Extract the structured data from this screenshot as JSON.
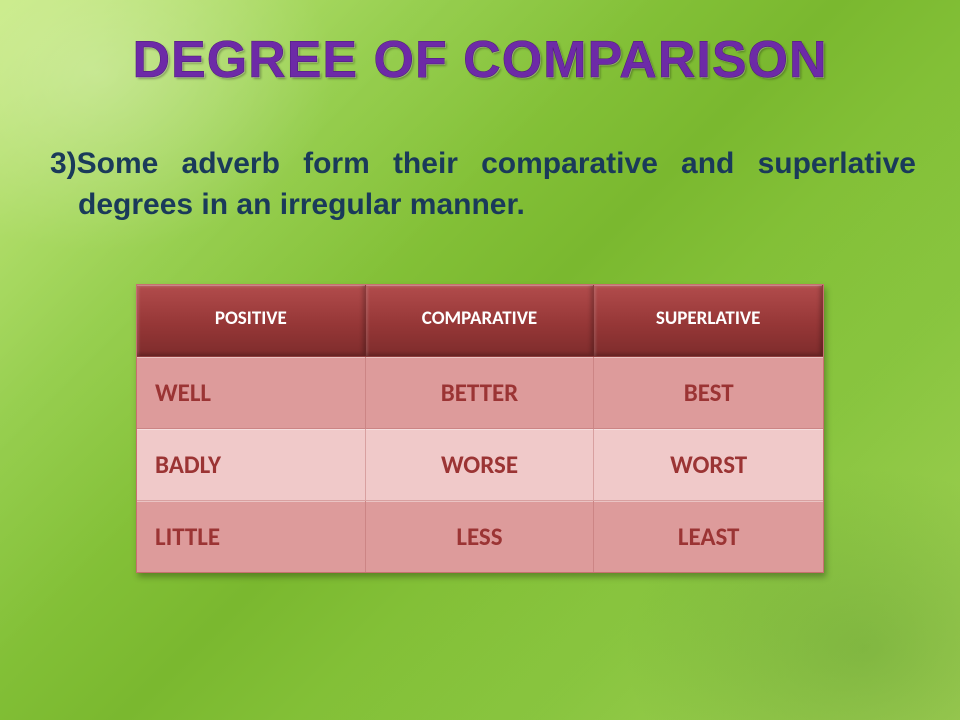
{
  "title": "DEGREE OF COMPARISON",
  "subtitle_line1": "3)Some adverb form their comparative and",
  "subtitle_line2": "superlative degrees in an irregular manner.",
  "table": {
    "columns": [
      "POSITIVE",
      "COMPARATIVE",
      "SUPERLATIVE"
    ],
    "rows": [
      [
        "WELL",
        "BETTER",
        "BEST"
      ],
      [
        "BADLY",
        "WORSE",
        "WORST"
      ],
      [
        "LITTLE",
        "LESS",
        "LEAST"
      ]
    ],
    "header_bg": "#963737",
    "header_text_color": "#ffffff",
    "row_bg_dark": "#dd9b9b",
    "row_bg_light": "#f0c9c9",
    "cell_text_color": "#9b3434",
    "header_fontsize": 19,
    "cell_fontsize": 25
  },
  "colors": {
    "title": "#6d2aa7",
    "subtitle": "#1a3a5a",
    "bg_gradient_from": "#b8e561",
    "bg_gradient_to": "#7ab82f"
  },
  "fonts": {
    "title_size": 52,
    "subtitle_size": 30
  }
}
